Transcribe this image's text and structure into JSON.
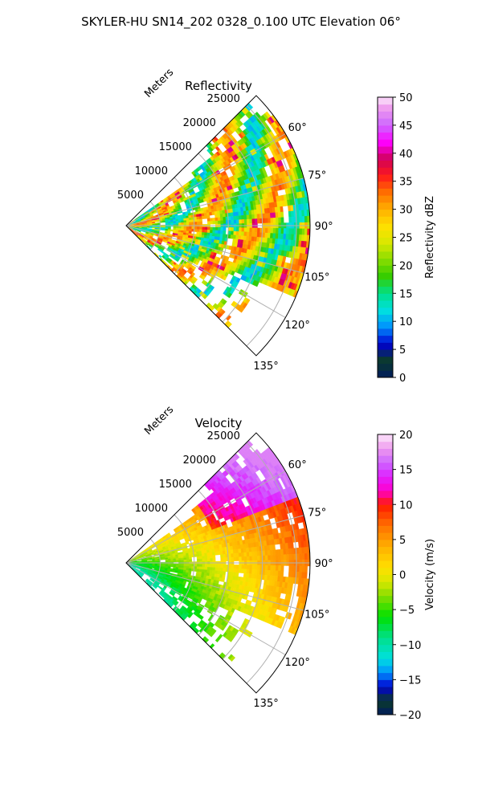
{
  "suptitle": "SKYLER-HU  SN14_202  0328_0.100 UTC Elevation 06°",
  "chart_data": [
    {
      "type": "heatmap",
      "projection": "polar-sector",
      "title": "Reflectivity",
      "radial_label": "Meters",
      "radial_ticks": [
        5000,
        10000,
        15000,
        20000,
        25000
      ],
      "radial_tick_labels": [
        "5000",
        "10000",
        "15000",
        "20000",
        "25000"
      ],
      "rmax": 27000,
      "angle_range_deg": [
        45,
        135
      ],
      "angle_ticks": [
        60,
        75,
        90,
        105,
        120,
        135
      ],
      "angle_tick_labels": [
        "60°",
        "75°",
        "90°",
        "105°",
        "120°",
        "135°"
      ],
      "grid": true,
      "colorbar": {
        "label": "Reflectivity dBZ",
        "range": [
          0,
          50
        ],
        "ticks": [
          0,
          5,
          10,
          15,
          20,
          25,
          30,
          35,
          40,
          45,
          50
        ],
        "tick_labels": [
          "0",
          "5",
          "10",
          "15",
          "20",
          "25",
          "30",
          "35",
          "40",
          "45",
          "50"
        ],
        "colormap": "pyart_NWSRef"
      },
      "typical_range": [
        12,
        38
      ]
    },
    {
      "type": "heatmap",
      "projection": "polar-sector",
      "title": "Velocity",
      "radial_label": "Meters",
      "radial_ticks": [
        5000,
        10000,
        15000,
        20000,
        25000
      ],
      "radial_tick_labels": [
        "5000",
        "10000",
        "15000",
        "20000",
        "25000"
      ],
      "rmax": 27000,
      "angle_range_deg": [
        45,
        135
      ],
      "angle_ticks": [
        60,
        75,
        90,
        105,
        120,
        135
      ],
      "angle_tick_labels": [
        "60°",
        "75°",
        "90°",
        "105°",
        "120°",
        "135°"
      ],
      "grid": true,
      "colorbar": {
        "label": "Velocity (m/s)",
        "range": [
          -20,
          20
        ],
        "ticks": [
          -20,
          -15,
          -10,
          -5,
          0,
          5,
          10,
          15,
          20
        ],
        "tick_labels": [
          "−20",
          "−15",
          "−10",
          "−5",
          "0",
          "5",
          "10",
          "15",
          "20"
        ],
        "colormap": "pyart_NWSVel"
      },
      "typical_range": [
        -8,
        16
      ]
    }
  ]
}
